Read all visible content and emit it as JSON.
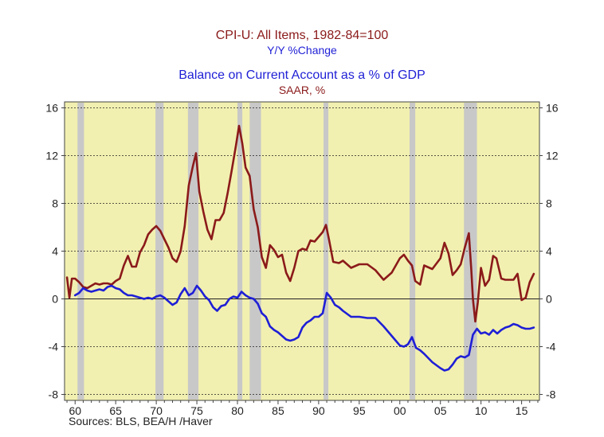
{
  "titles": {
    "cpi_title": "CPI-U: All Items, 1982-84=100",
    "cpi_subtitle": "Y/Y %Change",
    "bca_title": "Balance on Current Account as a % of GDP",
    "bca_subtitle": "SAAR, %"
  },
  "sources": "Sources:   BLS, BEA/H /Haver",
  "colors": {
    "plot_bg": "#f2f0b0",
    "recession": "#c8c8c8",
    "cpi": "#8b1a1a",
    "bca": "#1f1fd6"
  },
  "chart_data": {
    "type": "line",
    "x_range": [
      1958.7,
      2017.2
    ],
    "y_range": [
      -8.5,
      16.5
    ],
    "y_ticks": [
      16,
      12,
      8,
      4,
      0,
      -4,
      -8
    ],
    "y_tick_labels": [
      "16",
      "12",
      "8",
      "4",
      "0",
      "-4",
      "-8"
    ],
    "x_ticks": [
      1960,
      1965,
      1970,
      1975,
      1980,
      1985,
      1990,
      1995,
      2000,
      2005,
      2010,
      2015
    ],
    "x_tick_labels": [
      "60",
      "65",
      "70",
      "75",
      "80",
      "85",
      "90",
      "95",
      "00",
      "05",
      "10",
      "15"
    ],
    "grid": "horizontal dashed at y ticks",
    "recessions": [
      [
        1960.3,
        1961.1
      ],
      [
        1969.9,
        1970.9
      ],
      [
        1973.9,
        1975.2
      ],
      [
        1980.0,
        1980.6
      ],
      [
        1981.5,
        1982.9
      ],
      [
        1990.6,
        1991.2
      ],
      [
        2001.2,
        2001.9
      ],
      [
        2007.9,
        2009.5
      ]
    ],
    "series": [
      {
        "name": "",
        "x": [
          1959.0,
          1959.3,
          1959.6,
          1960.0,
          1960.5,
          1961.0,
          1961.5,
          1962.0,
          1962.5,
          1963.0,
          1963.5,
          1964.0,
          1964.5,
          1965.0,
          1965.5,
          1966.0,
          1966.5,
          1967.0,
          1967.5,
          1968.0,
          1968.5,
          1969.0,
          1969.5,
          1970.0,
          1970.5,
          1971.0,
          1971.5,
          1972.0,
          1972.5,
          1973.0,
          1973.5,
          1974.0,
          1974.5,
          1974.9,
          1975.3,
          1975.8,
          1976.3,
          1976.8,
          1977.3,
          1977.8,
          1978.3,
          1978.8,
          1979.3,
          1979.8,
          1980.2,
          1980.6,
          1981.0,
          1981.5,
          1982.0,
          1982.5,
          1983.0,
          1983.5,
          1984.0,
          1984.5,
          1985.0,
          1985.5,
          1986.0,
          1986.5,
          1987.0,
          1987.5,
          1988.0,
          1988.5,
          1989.0,
          1989.5,
          1990.0,
          1990.5,
          1990.9,
          1991.3,
          1991.8,
          1992.5,
          1993.0,
          1994.0,
          1995.0,
          1996.0,
          1997.0,
          1998.0,
          1999.0,
          2000.0,
          2000.5,
          2001.0,
          2001.5,
          2001.9,
          2002.5,
          2003.0,
          2004.0,
          2005.0,
          2005.5,
          2006.0,
          2006.5,
          2007.0,
          2007.5,
          2008.0,
          2008.5,
          2008.8,
          2009.0,
          2009.3,
          2009.6,
          2010.0,
          2010.5,
          2011.0,
          2011.5,
          2011.9,
          2012.5,
          2013.0,
          2013.5,
          2014.0,
          2014.5,
          2015.0,
          2015.5,
          2016.0,
          2016.5
        ],
        "values": [
          1.8,
          0.1,
          1.7,
          1.7,
          1.4,
          1.0,
          0.9,
          1.1,
          1.3,
          1.2,
          1.3,
          1.3,
          1.2,
          1.5,
          1.7,
          2.8,
          3.6,
          2.7,
          2.7,
          3.9,
          4.5,
          5.4,
          5.8,
          6.1,
          5.7,
          5.0,
          4.3,
          3.4,
          3.1,
          4.0,
          6.1,
          9.5,
          11.1,
          12.2,
          9.0,
          7.3,
          5.8,
          5.0,
          6.6,
          6.6,
          7.2,
          8.9,
          10.8,
          12.8,
          14.5,
          13.0,
          11.0,
          10.3,
          7.5,
          6.0,
          3.5,
          2.6,
          4.5,
          4.1,
          3.5,
          3.7,
          2.2,
          1.5,
          2.6,
          4.0,
          4.2,
          4.1,
          4.9,
          4.8,
          5.2,
          5.6,
          6.2,
          4.9,
          3.1,
          3.0,
          3.2,
          2.6,
          2.9,
          2.9,
          2.4,
          1.6,
          2.2,
          3.4,
          3.7,
          3.2,
          2.8,
          1.5,
          1.2,
          2.8,
          2.5,
          3.4,
          4.7,
          3.8,
          2.0,
          2.4,
          2.9,
          4.3,
          5.5,
          2.5,
          0.0,
          -1.9,
          -0.3,
          2.6,
          1.1,
          1.6,
          3.6,
          3.4,
          1.7,
          1.6,
          1.6,
          1.6,
          2.1,
          -0.1,
          0.1,
          1.4,
          2.1
        ]
      },
      {
        "name": "",
        "x": [
          1960.0,
          1960.5,
          1961.0,
          1961.5,
          1962.0,
          1962.5,
          1963.0,
          1963.5,
          1964.0,
          1964.5,
          1965.0,
          1965.5,
          1966.0,
          1966.5,
          1967.0,
          1967.5,
          1968.0,
          1968.5,
          1969.0,
          1969.5,
          1970.0,
          1970.5,
          1971.0,
          1971.5,
          1972.0,
          1972.5,
          1973.0,
          1973.5,
          1974.0,
          1974.5,
          1975.0,
          1975.5,
          1976.0,
          1976.5,
          1977.0,
          1977.5,
          1978.0,
          1978.5,
          1979.0,
          1979.5,
          1980.0,
          1980.5,
          1981.0,
          1981.5,
          1982.0,
          1982.5,
          1983.0,
          1983.5,
          1984.0,
          1984.5,
          1985.0,
          1985.5,
          1986.0,
          1986.5,
          1987.0,
          1987.5,
          1988.0,
          1988.5,
          1989.0,
          1989.5,
          1990.0,
          1990.5,
          1991.0,
          1991.5,
          1992.0,
          1992.5,
          1993.0,
          1994.0,
          1995.0,
          1996.0,
          1997.0,
          1998.0,
          1999.0,
          2000.0,
          2000.5,
          2001.0,
          2001.5,
          2002.0,
          2002.5,
          2003.0,
          2004.0,
          2005.0,
          2005.5,
          2006.0,
          2006.5,
          2007.0,
          2007.5,
          2008.0,
          2008.5,
          2009.0,
          2009.5,
          2010.0,
          2010.5,
          2011.0,
          2011.5,
          2012.0,
          2012.5,
          2013.0,
          2013.5,
          2014.0,
          2014.5,
          2015.0,
          2015.5,
          2016.0,
          2016.5
        ],
        "values": [
          0.3,
          0.5,
          0.9,
          0.7,
          0.6,
          0.7,
          0.8,
          0.7,
          1.0,
          1.1,
          0.9,
          0.8,
          0.5,
          0.3,
          0.3,
          0.2,
          0.1,
          0.0,
          0.1,
          0.0,
          0.2,
          0.3,
          0.1,
          -0.2,
          -0.5,
          -0.3,
          0.4,
          0.9,
          0.3,
          0.5,
          1.1,
          0.7,
          0.2,
          -0.1,
          -0.7,
          -1.0,
          -0.6,
          -0.5,
          0.0,
          0.2,
          0.1,
          0.6,
          0.3,
          0.1,
          0.0,
          -0.4,
          -1.2,
          -1.5,
          -2.3,
          -2.6,
          -2.8,
          -3.1,
          -3.4,
          -3.5,
          -3.4,
          -3.2,
          -2.4,
          -2.0,
          -1.8,
          -1.5,
          -1.5,
          -1.2,
          0.5,
          0.1,
          -0.5,
          -0.7,
          -1.0,
          -1.5,
          -1.5,
          -1.6,
          -1.6,
          -2.3,
          -3.1,
          -3.9,
          -4.0,
          -3.8,
          -3.2,
          -4.1,
          -4.3,
          -4.6,
          -5.3,
          -5.8,
          -6.0,
          -5.9,
          -5.5,
          -5.0,
          -4.8,
          -4.9,
          -4.7,
          -3.0,
          -2.5,
          -2.9,
          -2.8,
          -3.0,
          -2.6,
          -2.9,
          -2.6,
          -2.4,
          -2.3,
          -2.1,
          -2.2,
          -2.4,
          -2.5,
          -2.5,
          -2.4
        ]
      }
    ]
  }
}
